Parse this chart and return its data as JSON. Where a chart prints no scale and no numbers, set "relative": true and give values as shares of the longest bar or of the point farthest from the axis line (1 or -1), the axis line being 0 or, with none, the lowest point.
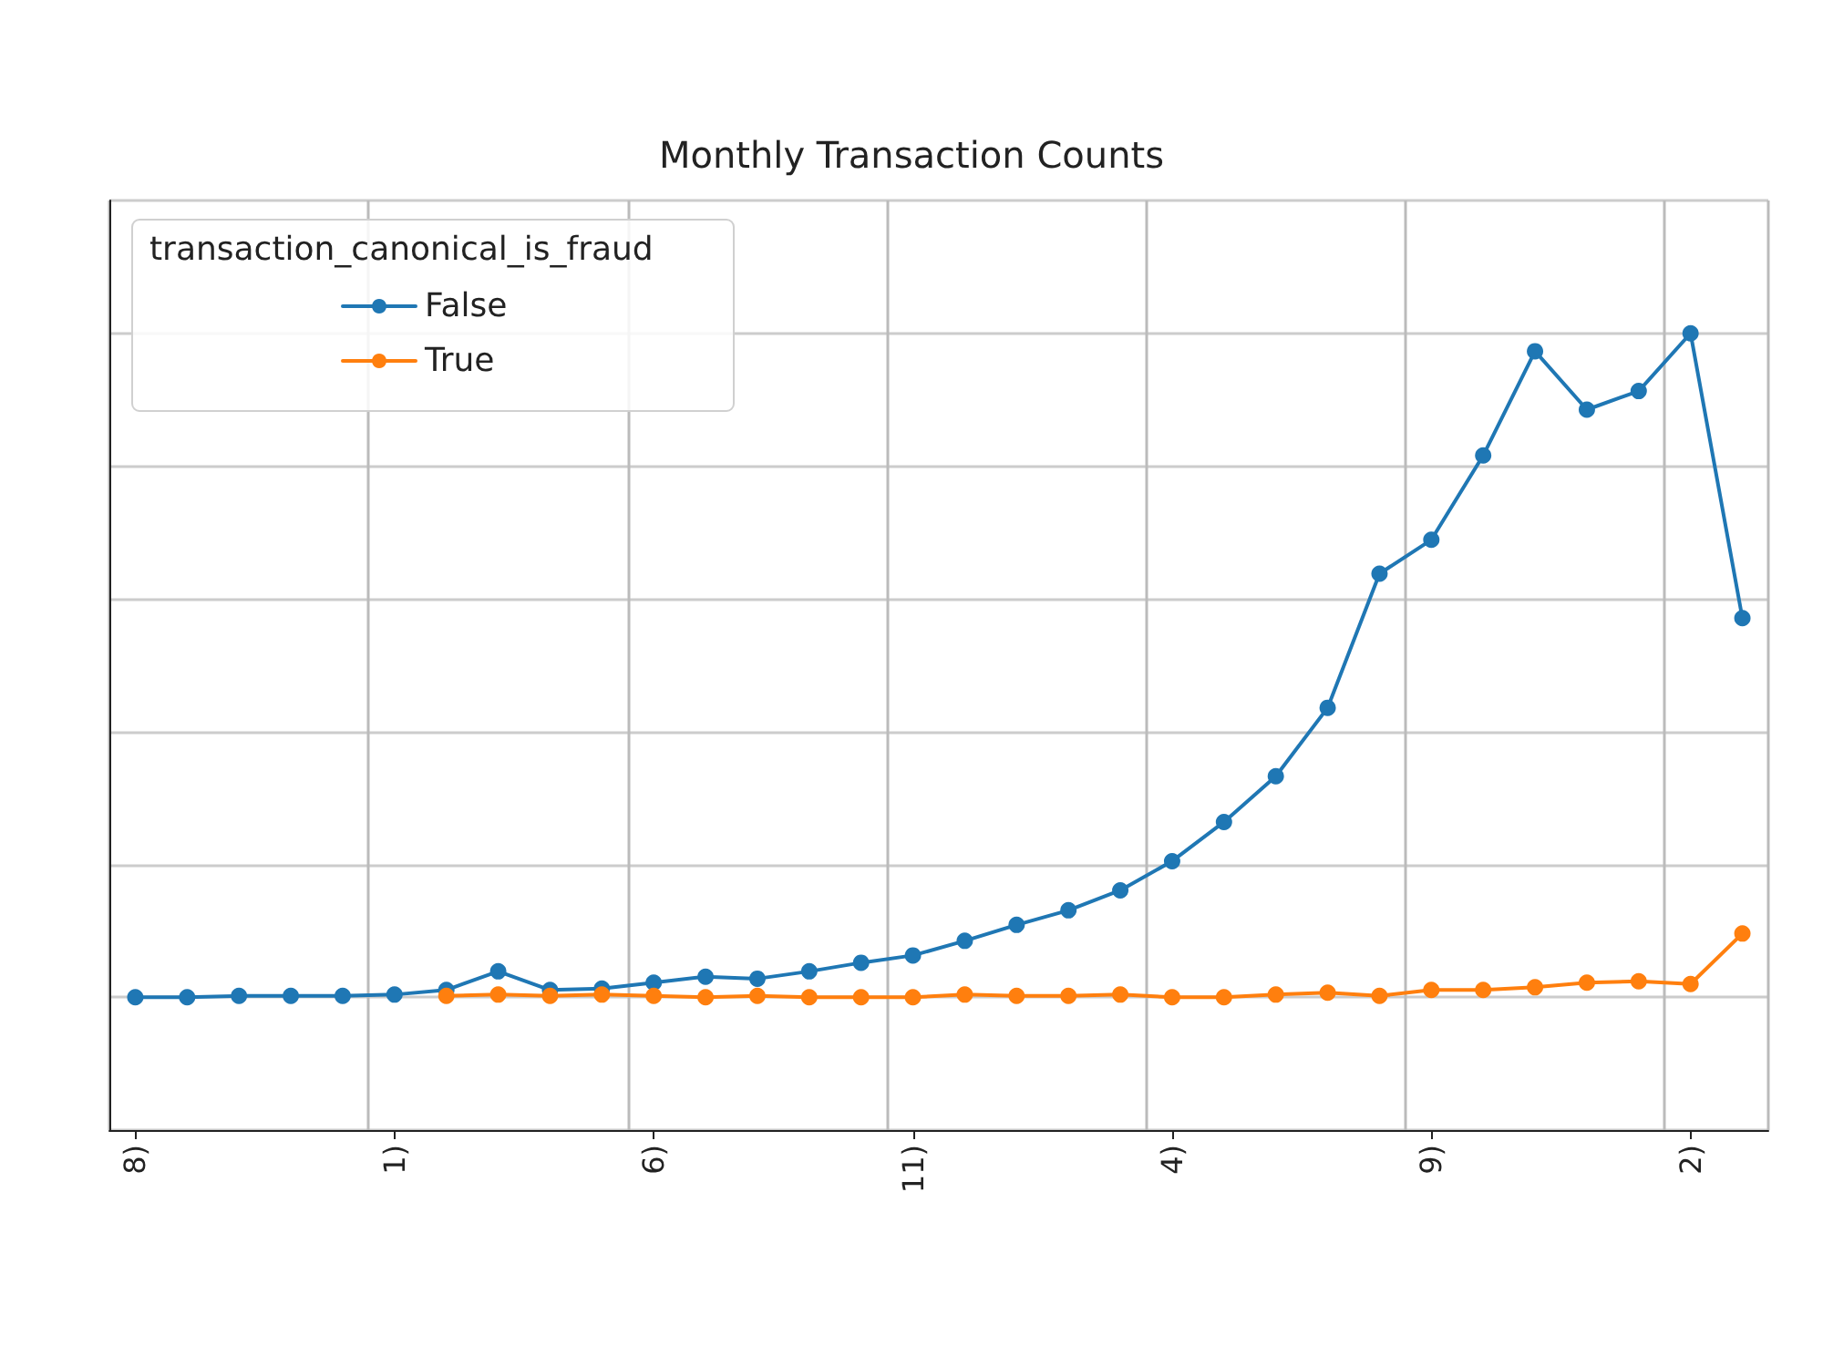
{
  "chart_data": {
    "type": "line",
    "title": "Monthly Transaction Counts",
    "legend_title": "transaction_canonical_is_fraud",
    "categories": [
      "8)",
      null,
      null,
      null,
      null,
      "1)",
      null,
      null,
      null,
      null,
      "6)",
      null,
      null,
      null,
      null,
      "11)",
      null,
      null,
      null,
      null,
      "4)",
      null,
      null,
      null,
      null,
      "9)",
      null,
      null,
      null,
      null,
      "2)",
      null
    ],
    "series": [
      {
        "name": "False",
        "color": "#1f77b4",
        "values": [
          0,
          0,
          0.002,
          0.002,
          0.002,
          0.004,
          0.011,
          0.039,
          0.011,
          0.013,
          0.022,
          0.031,
          0.028,
          0.039,
          0.052,
          0.063,
          0.085,
          0.109,
          0.131,
          0.161,
          0.205,
          0.264,
          0.333,
          0.436,
          0.638,
          0.689,
          0.816,
          0.973,
          0.885,
          0.913,
          1,
          0.571
        ]
      },
      {
        "name": "True",
        "color": "#ff7f0e",
        "values": [
          null,
          null,
          null,
          null,
          null,
          null,
          0.002,
          0.004,
          0.002,
          0.004,
          0.002,
          0,
          0.002,
          0,
          0,
          0,
          0.004,
          0.002,
          0.002,
          0.004,
          0,
          0,
          0.004,
          0.007,
          0.002,
          0.011,
          0.011,
          0.015,
          0.022,
          0.024,
          0.02,
          0.096
        ]
      }
    ],
    "relative": true,
    "grid": true,
    "legend": "top left",
    "marker": "circle",
    "line_style": "solid"
  }
}
